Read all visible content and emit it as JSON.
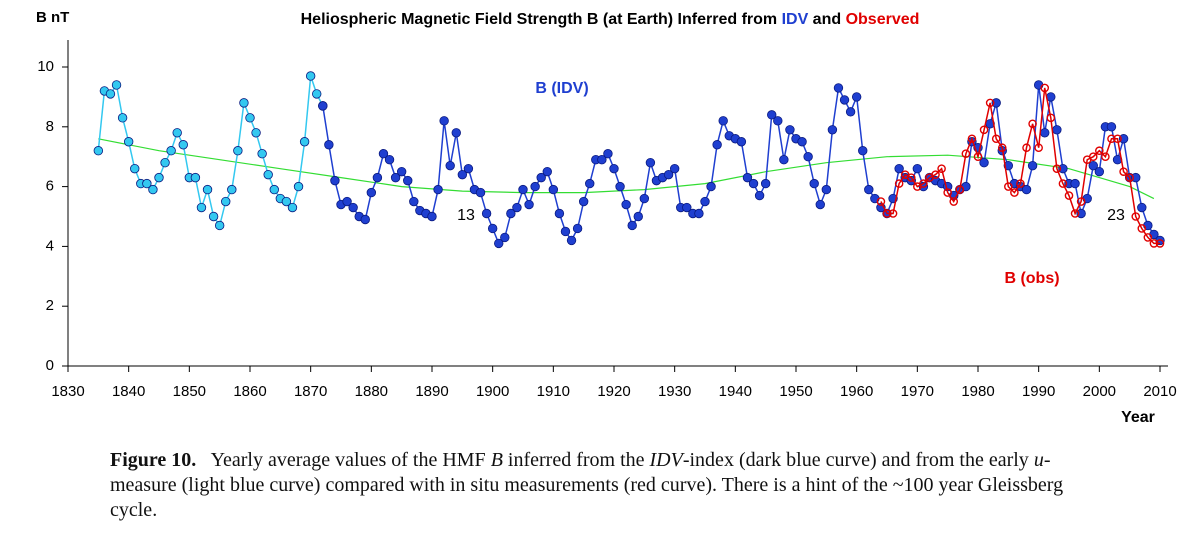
{
  "chart_data": {
    "type": "line",
    "title_parts": [
      {
        "text": "Heliospheric Magnetic Field Strength B (at Earth) Inferred from ",
        "color": "#000000"
      },
      {
        "text": "IDV",
        "color": "#1f3fd0"
      },
      {
        "text": " and ",
        "color": "#000000"
      },
      {
        "text": "Observed",
        "color": "#e00000"
      }
    ],
    "y_label": "B nT",
    "x_label": "Year",
    "xlim": [
      1830,
      2010
    ],
    "xticks": [
      1830,
      1840,
      1850,
      1860,
      1870,
      1880,
      1890,
      1900,
      1910,
      1920,
      1930,
      1940,
      1950,
      1960,
      1970,
      1980,
      1990,
      2000,
      2010
    ],
    "ylim": [
      0,
      10
    ],
    "yticks": [
      0,
      2,
      4,
      6,
      8,
      10
    ],
    "series": [
      {
        "color": "#33c8f0",
        "marker": "filled",
        "x": [
          1835,
          1836,
          1837,
          1838,
          1839,
          1840,
          1841,
          1842,
          1843,
          1844,
          1845,
          1846,
          1847,
          1848,
          1849,
          1850,
          1851,
          1852,
          1853,
          1854,
          1855,
          1856,
          1857,
          1858,
          1859,
          1860,
          1861,
          1862,
          1863,
          1864,
          1865,
          1866,
          1867,
          1868,
          1869,
          1870,
          1871,
          1872
        ],
        "values": [
          7.2,
          9.2,
          9.1,
          9.4,
          8.3,
          7.5,
          6.6,
          6.1,
          6.1,
          5.9,
          6.3,
          6.8,
          7.2,
          7.8,
          7.4,
          6.3,
          6.3,
          5.3,
          5.9,
          5.0,
          4.7,
          5.5,
          5.9,
          7.2,
          8.8,
          8.3,
          7.8,
          7.1,
          6.4,
          5.9,
          5.6,
          5.5,
          5.3,
          6.0,
          7.5,
          9.7,
          9.1,
          8.7
        ]
      },
      {
        "name": "B (IDV)",
        "color": "#1f3fd0",
        "marker": "filled",
        "x": [
          1872,
          1873,
          1874,
          1875,
          1876,
          1877,
          1878,
          1879,
          1880,
          1881,
          1882,
          1883,
          1884,
          1885,
          1886,
          1887,
          1888,
          1889,
          1890,
          1891,
          1892,
          1893,
          1894,
          1895,
          1896,
          1897,
          1898,
          1899,
          1900,
          1901,
          1902,
          1903,
          1904,
          1905,
          1906,
          1907,
          1908,
          1909,
          1910,
          1911,
          1912,
          1913,
          1914,
          1915,
          1916,
          1917,
          1918,
          1919,
          1920,
          1921,
          1922,
          1923,
          1924,
          1925,
          1926,
          1927,
          1928,
          1929,
          1930,
          1931,
          1932,
          1933,
          1934,
          1935,
          1936,
          1937,
          1938,
          1939,
          1940,
          1941,
          1942,
          1943,
          1944,
          1945,
          1946,
          1947,
          1948,
          1949,
          1950,
          1951,
          1952,
          1953,
          1954,
          1955,
          1956,
          1957,
          1958,
          1959,
          1960,
          1961,
          1962,
          1963,
          1964,
          1965,
          1966,
          1967,
          1968,
          1969,
          1970,
          1971,
          1972,
          1973,
          1974,
          1975,
          1976,
          1977,
          1978,
          1979,
          1980,
          1981,
          1982,
          1983,
          1984,
          1985,
          1986,
          1987,
          1988,
          1989,
          1990,
          1991,
          1992,
          1993,
          1994,
          1995,
          1996,
          1997,
          1998,
          1999,
          2000,
          2001,
          2002,
          2003,
          2004,
          2005,
          2006,
          2007,
          2008,
          2009,
          2010
        ],
        "values": [
          8.7,
          7.4,
          6.2,
          5.4,
          5.5,
          5.3,
          5.0,
          4.9,
          5.8,
          6.3,
          7.1,
          6.9,
          6.3,
          6.5,
          6.2,
          5.5,
          5.2,
          5.1,
          5.0,
          5.9,
          8.2,
          6.7,
          7.8,
          6.4,
          6.6,
          5.9,
          5.8,
          5.1,
          4.6,
          4.1,
          4.3,
          5.1,
          5.3,
          5.9,
          5.4,
          6.0,
          6.3,
          6.5,
          5.9,
          5.1,
          4.5,
          4.2,
          4.6,
          5.5,
          6.1,
          6.9,
          6.9,
          7.1,
          6.6,
          6.0,
          5.4,
          4.7,
          5.0,
          5.6,
          6.8,
          6.2,
          6.3,
          6.4,
          6.6,
          5.3,
          5.3,
          5.1,
          5.1,
          5.5,
          6.0,
          7.4,
          8.2,
          7.7,
          7.6,
          7.5,
          6.3,
          6.1,
          5.7,
          6.1,
          8.4,
          8.2,
          6.9,
          7.9,
          7.6,
          7.5,
          7.0,
          6.1,
          5.4,
          5.9,
          7.9,
          9.3,
          8.9,
          8.5,
          9.0,
          7.2,
          5.9,
          5.6,
          5.3,
          5.1,
          5.6,
          6.6,
          6.3,
          6.2,
          6.6,
          6.0,
          6.3,
          6.2,
          6.1,
          6.0,
          5.7,
          5.9,
          6.0,
          7.5,
          7.3,
          6.8,
          8.1,
          8.8,
          7.2,
          6.7,
          6.1,
          6.0,
          5.9,
          6.7,
          9.4,
          7.8,
          9.0,
          7.9,
          6.6,
          6.1,
          6.1,
          5.1,
          5.6,
          6.7,
          6.5,
          8.0,
          8.0,
          6.9,
          7.6,
          6.3,
          6.3,
          5.3,
          4.7,
          4.4,
          4.2
        ]
      },
      {
        "name": "B (obs)",
        "color": "#e00000",
        "marker": "open",
        "x": [
          1964,
          1965,
          1966,
          1967,
          1968,
          1969,
          1970,
          1971,
          1972,
          1973,
          1974,
          1975,
          1976,
          1977,
          1978,
          1979,
          1980,
          1981,
          1982,
          1983,
          1984,
          1985,
          1986,
          1987,
          1988,
          1989,
          1990,
          1991,
          1992,
          1993,
          1994,
          1995,
          1996,
          1997,
          1998,
          1999,
          2000,
          2001,
          2002,
          2003,
          2004,
          2005,
          2006,
          2007,
          2008,
          2009,
          2010
        ],
        "values": [
          5.5,
          5.1,
          5.1,
          6.1,
          6.4,
          6.3,
          6.0,
          6.1,
          6.3,
          6.4,
          6.6,
          5.8,
          5.5,
          5.9,
          7.1,
          7.6,
          7.0,
          7.9,
          8.8,
          7.6,
          7.3,
          6.0,
          5.8,
          6.1,
          7.3,
          8.1,
          7.3,
          9.3,
          8.3,
          6.6,
          6.1,
          5.7,
          5.1,
          5.5,
          6.9,
          7.0,
          7.2,
          7.0,
          7.6,
          7.6,
          6.5,
          6.3,
          5.0,
          4.6,
          4.3,
          4.1,
          4.1
        ]
      },
      {
        "color": "#33dd33",
        "marker": "none",
        "x": [
          1835,
          1845,
          1855,
          1865,
          1875,
          1885,
          1895,
          1905,
          1915,
          1925,
          1935,
          1945,
          1955,
          1965,
          1975,
          1985,
          1995,
          2000,
          2005,
          2009
        ],
        "values": [
          7.6,
          7.2,
          6.9,
          6.6,
          6.3,
          6.0,
          5.85,
          5.8,
          5.8,
          5.9,
          6.1,
          6.5,
          6.8,
          7.0,
          7.05,
          6.9,
          6.6,
          6.3,
          6.0,
          5.6
        ]
      }
    ],
    "annotations": [
      "13",
      "23"
    ]
  },
  "caption": {
    "label": "Figure 10.",
    "segments": [
      {
        "text": "Yearly average values of the HMF "
      },
      {
        "text": "B",
        "italic": true
      },
      {
        "text": " inferred from the "
      },
      {
        "text": "IDV",
        "italic": true
      },
      {
        "text": "-index (dark blue curve) and from the early "
      },
      {
        "text": "u",
        "italic": true
      },
      {
        "text": "-measure (light blue curve) compared with in situ measurements (red curve). There is a hint of the ~100 year Gleissberg cycle."
      }
    ]
  }
}
